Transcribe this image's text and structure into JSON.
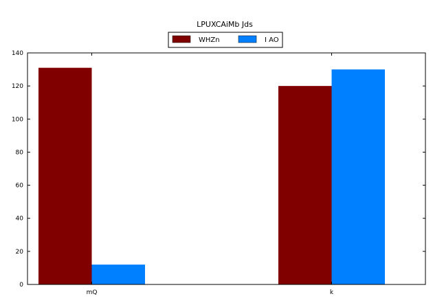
{
  "chart_data": {
    "type": "bar",
    "title": "LPUXCAiMb Jds",
    "xlabel": "",
    "ylabel": "",
    "categories": [
      "mQ",
      "k"
    ],
    "series": [
      {
        "name": "WHZn",
        "values": [
          131,
          120
        ],
        "color": "#800000"
      },
      {
        "name": "I AO",
        "values": [
          12,
          130
        ],
        "color": "#0080ff"
      }
    ],
    "ylim": [
      0,
      140
    ],
    "yticks": [
      0,
      20,
      40,
      60,
      80,
      100,
      120,
      140
    ],
    "grid": false,
    "legend_placement": "top-center"
  }
}
